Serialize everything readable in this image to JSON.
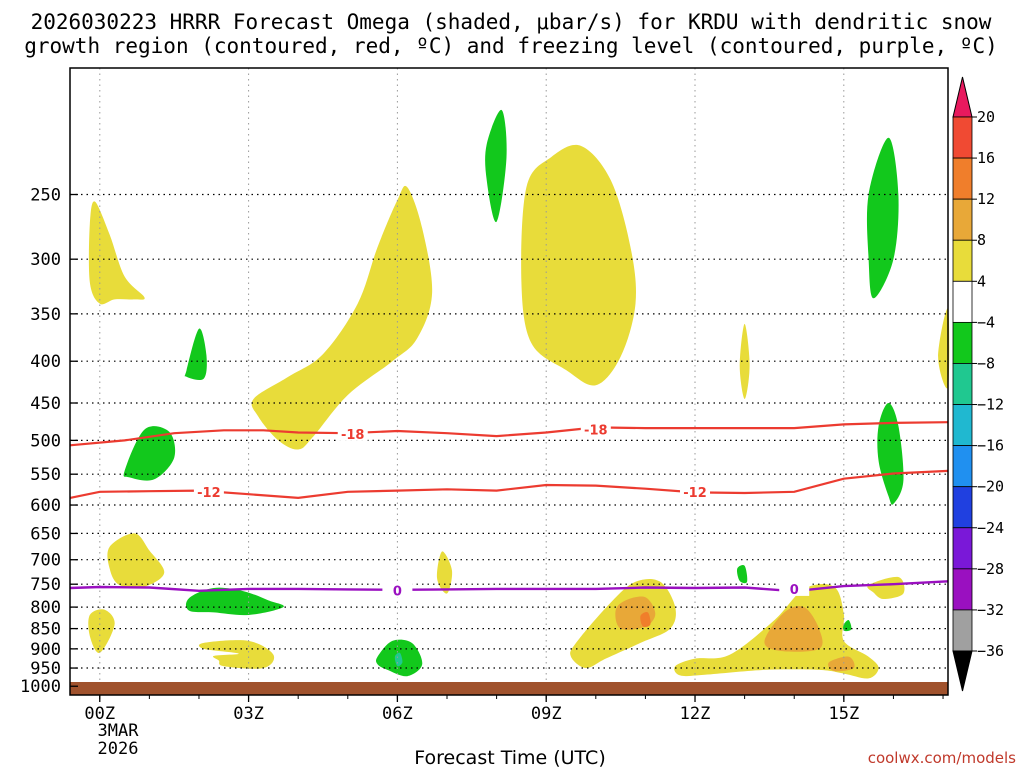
{
  "chart_data": {
    "type": "contour",
    "title_line1": "2026030223 HRRR Forecast Omega (shaded, μbar/s) for KRDU with dendritic snow",
    "title_line2": "growth region (contoured, red, ºC) and freezing level (contoured, purple, ºC)",
    "xlabel": "Forecast Time (UTC)",
    "x_ticks": [
      "00Z",
      "03Z",
      "06Z",
      "09Z",
      "12Z",
      "15Z"
    ],
    "x_tick_hours": [
      0,
      3,
      6,
      9,
      12,
      15
    ],
    "x_date_line1": "3MAR",
    "x_date_line2": "2026",
    "xlim_hours": [
      -0.6,
      17.1
    ],
    "y_ticks": [
      250,
      300,
      350,
      400,
      450,
      500,
      550,
      600,
      650,
      700,
      750,
      800,
      850,
      900,
      950,
      1000
    ],
    "ylim_hpa": [
      175,
      1025
    ],
    "y_scale": "log-pressure",
    "colorbar": {
      "levels": [
        20,
        16,
        12,
        8,
        4,
        -4,
        -8,
        -12,
        -16,
        -20,
        -24,
        -28,
        -32,
        -36
      ],
      "colors": [
        "#e8195e",
        "#f04a33",
        "#f07e2b",
        "#e8a838",
        "#e8dc3a",
        "#ffffff",
        "#12c81c",
        "#20c890",
        "#20b8d0",
        "#2090f0",
        "#2040e0",
        "#7a18d8",
        "#9a10c0",
        "#a0a0a0",
        "#000000"
      ]
    },
    "contours": {
      "dgz_red": [
        {
          "label": "-18",
          "hours": [
            -0.6,
            0.5,
            1.5,
            2.5,
            3.3,
            4.0,
            5.0,
            6.0,
            7.0,
            8.0,
            9.0,
            10.0,
            11.0,
            12.0,
            13.0,
            14.0,
            15.0,
            16.0,
            17.1
          ],
          "hpa": [
            507,
            500,
            490,
            486,
            486,
            489,
            490,
            487,
            490,
            494,
            489,
            482,
            483,
            483,
            483,
            483,
            478,
            476,
            475
          ]
        },
        {
          "label": "-12",
          "hours": [
            -0.6,
            0.0,
            1.0,
            2.0,
            3.0,
            4.0,
            5.0,
            6.0,
            7.0,
            8.0,
            9.0,
            10.0,
            11.0,
            12.0,
            13.0,
            14.0,
            15.0,
            16.0,
            17.1
          ],
          "hpa": [
            588,
            578,
            577,
            576,
            582,
            588,
            578,
            576,
            574,
            576,
            567,
            568,
            573,
            579,
            580,
            578,
            557,
            549,
            545
          ]
        }
      ],
      "freezing_purple": {
        "label": "0",
        "hours": [
          -0.6,
          0.0,
          1.0,
          2.0,
          3.0,
          4.0,
          5.0,
          6.0,
          7.0,
          8.0,
          9.0,
          10.0,
          11.0,
          12.0,
          13.0,
          14.0,
          15.0,
          16.0,
          17.1
        ],
        "hpa": [
          758,
          756,
          757,
          764,
          760,
          760,
          761,
          762,
          761,
          760,
          760,
          760,
          757,
          758,
          757,
          765,
          754,
          750,
          744
        ]
      }
    },
    "label_positions": {
      "dgz_red_labels": [
        {
          "text": "-18",
          "hour": 5.1,
          "hpa": 491
        },
        {
          "text": "-18",
          "hour": 10.0,
          "hpa": 485
        },
        {
          "text": "-12",
          "hour": 2.2,
          "hpa": 578
        },
        {
          "text": "-12",
          "hour": 12.0,
          "hpa": 578
        }
      ],
      "freezing_labels": [
        {
          "text": "0",
          "hour": 6.0,
          "hpa": 763
        },
        {
          "text": "0",
          "hour": 14.0,
          "hpa": 760
        }
      ]
    },
    "omega_regions": [
      {
        "class": "4-8",
        "polygon": [
          [
            -0.2,
            272
          ],
          [
            -0.1,
            255
          ],
          [
            0.2,
            280
          ],
          [
            0.5,
            315
          ],
          [
            0.9,
            334
          ],
          [
            0.7,
            336
          ],
          [
            0.3,
            336
          ],
          [
            0,
            340
          ],
          [
            -0.2,
            320
          ]
        ]
      },
      {
        "class": "4-8",
        "polygon": [
          [
            3.1,
            445
          ],
          [
            3.8,
            418
          ],
          [
            4.5,
            392
          ],
          [
            5.2,
            340
          ],
          [
            5.6,
            290
          ],
          [
            6.0,
            254
          ],
          [
            6.2,
            245
          ],
          [
            6.5,
            275
          ],
          [
            6.7,
            330
          ],
          [
            6.4,
            375
          ],
          [
            5.9,
            400
          ],
          [
            5.0,
            440
          ],
          [
            4.3,
            495
          ],
          [
            4.0,
            513
          ],
          [
            3.6,
            500
          ],
          [
            3.2,
            468
          ]
        ]
      },
      {
        "class": "4-8",
        "polygon": [
          [
            8.6,
            245
          ],
          [
            9.1,
            225
          ],
          [
            9.7,
            218
          ],
          [
            10.3,
            240
          ],
          [
            10.7,
            290
          ],
          [
            10.8,
            340
          ],
          [
            10.5,
            395
          ],
          [
            10.0,
            428
          ],
          [
            9.4,
            410
          ],
          [
            8.7,
            380
          ],
          [
            8.5,
            320
          ]
        ]
      },
      {
        "class": "4-8",
        "polygon": [
          [
            13.0,
            360
          ],
          [
            13.1,
            405
          ],
          [
            13.0,
            445
          ],
          [
            12.9,
            405
          ]
        ]
      },
      {
        "class": "4-8",
        "polygon": [
          [
            17.1,
            345
          ],
          [
            16.9,
            395
          ],
          [
            17.1,
            430
          ]
        ]
      },
      {
        "class": "4-8",
        "polygon": [
          [
            0.2,
            675
          ],
          [
            0.7,
            650
          ],
          [
            1.0,
            682
          ],
          [
            1.3,
            726
          ],
          [
            0.9,
            755
          ],
          [
            0.4,
            752
          ],
          [
            0.2,
            718
          ]
        ]
      },
      {
        "class": "4-8",
        "polygon": [
          [
            6.9,
            684
          ],
          [
            7.1,
            722
          ],
          [
            7.0,
            770
          ],
          [
            6.8,
            738
          ]
        ]
      },
      {
        "class": "4-8",
        "polygon": [
          [
            -0.2,
            818
          ],
          [
            0.1,
            806
          ],
          [
            0.3,
            840
          ],
          [
            0,
            910
          ],
          [
            -0.2,
            868
          ]
        ]
      },
      {
        "class": "4-8",
        "polygon": [
          [
            2.1,
            885
          ],
          [
            3.0,
            880
          ],
          [
            3.5,
            915
          ],
          [
            3.3,
            950
          ],
          [
            2.5,
            945
          ],
          [
            2.4,
            930
          ],
          [
            2.3,
            918
          ],
          [
            2.8,
            912
          ],
          [
            2.1,
            900
          ]
        ]
      },
      {
        "class": "4-8",
        "polygon": [
          [
            9.6,
            885
          ],
          [
            10.3,
            790
          ],
          [
            10.8,
            745
          ],
          [
            11.3,
            745
          ],
          [
            11.6,
            800
          ],
          [
            11.5,
            850
          ],
          [
            10.9,
            885
          ],
          [
            10.2,
            925
          ],
          [
            9.8,
            950
          ],
          [
            9.5,
            920
          ]
        ]
      },
      {
        "class": "4-8",
        "polygon": [
          [
            11.6,
            945
          ],
          [
            12.0,
            925
          ],
          [
            12.7,
            915
          ],
          [
            13.6,
            830
          ],
          [
            14.2,
            760
          ],
          [
            14.8,
            755
          ],
          [
            15.0,
            815
          ],
          [
            15.0,
            880
          ],
          [
            15.5,
            920
          ],
          [
            15.7,
            950
          ],
          [
            15.5,
            978
          ],
          [
            15.0,
            965
          ],
          [
            14.5,
            955
          ],
          [
            13.4,
            955
          ],
          [
            12.2,
            968
          ],
          [
            11.7,
            970
          ]
        ]
      },
      {
        "class": "4-8",
        "polygon": [
          [
            15.5,
            752
          ],
          [
            16.1,
            735
          ],
          [
            16.2,
            770
          ],
          [
            15.8,
            782
          ],
          [
            15.6,
            768
          ]
        ]
      },
      {
        "class": "8-12",
        "polygon": [
          [
            10.4,
            808
          ],
          [
            10.6,
            785
          ],
          [
            11.0,
            778
          ],
          [
            11.2,
            815
          ],
          [
            11.0,
            845
          ],
          [
            10.5,
            850
          ]
        ]
      },
      {
        "class": "8-12",
        "polygon": [
          [
            13.4,
            880
          ],
          [
            13.8,
            812
          ],
          [
            14.2,
            800
          ],
          [
            14.5,
            850
          ],
          [
            14.5,
            900
          ],
          [
            13.7,
            905
          ]
        ]
      },
      {
        "class": "8-12",
        "polygon": [
          [
            14.7,
            935
          ],
          [
            15.1,
            920
          ],
          [
            15.2,
            950
          ],
          [
            14.8,
            958
          ]
        ]
      },
      {
        "class": "12-16",
        "polygon": [
          [
            10.9,
            820
          ],
          [
            11.05,
            812
          ],
          [
            11.1,
            840
          ],
          [
            10.95,
            845
          ]
        ]
      },
      {
        "class": "-8..-4",
        "polygon": [
          [
            7.8,
            217
          ],
          [
            8.1,
            197
          ],
          [
            8.2,
            225
          ],
          [
            8.0,
            270
          ],
          [
            7.8,
            240
          ]
        ]
      },
      {
        "class": "-8..-4",
        "polygon": [
          [
            1.75,
            410
          ],
          [
            2.0,
            365
          ],
          [
            2.15,
            393
          ],
          [
            2.1,
            420
          ],
          [
            1.75,
            418
          ]
        ]
      },
      {
        "class": "-8..-4",
        "polygon": [
          [
            15.5,
            250
          ],
          [
            15.9,
            213
          ],
          [
            16.1,
            250
          ],
          [
            16.0,
            300
          ],
          [
            15.6,
            335
          ],
          [
            15.5,
            300
          ]
        ]
      },
      {
        "class": "-8..-4",
        "polygon": [
          [
            15.7,
            480
          ],
          [
            15.9,
            450
          ],
          [
            16.1,
            480
          ],
          [
            16.2,
            560
          ],
          [
            16.0,
            598
          ],
          [
            15.9,
            585
          ],
          [
            15.7,
            530
          ]
        ]
      },
      {
        "class": "-8..-4",
        "polygon": [
          [
            0.5,
            545
          ],
          [
            0.9,
            485
          ],
          [
            1.4,
            488
          ],
          [
            1.5,
            525
          ],
          [
            1.1,
            558
          ],
          [
            0.6,
            555
          ]
        ]
      },
      {
        "class": "-8..-4",
        "polygon": [
          [
            1.8,
            780
          ],
          [
            2.3,
            758
          ],
          [
            2.9,
            765
          ],
          [
            3.4,
            785
          ],
          [
            3.7,
            800
          ],
          [
            3.0,
            818
          ],
          [
            2.3,
            812
          ],
          [
            1.8,
            808
          ]
        ]
      },
      {
        "class": "-8..-4",
        "polygon": [
          [
            12.85,
            718
          ],
          [
            13.0,
            712
          ],
          [
            13.05,
            745
          ],
          [
            12.9,
            743
          ]
        ]
      },
      {
        "class": "-8..-4",
        "polygon": [
          [
            15.0,
            840
          ],
          [
            15.1,
            830
          ],
          [
            15.15,
            852
          ],
          [
            15.0,
            855
          ]
        ]
      },
      {
        "class": "-8..-4",
        "polygon": [
          [
            5.6,
            920
          ],
          [
            5.9,
            880
          ],
          [
            6.3,
            886
          ],
          [
            6.5,
            940
          ],
          [
            6.2,
            972
          ],
          [
            5.8,
            955
          ],
          [
            5.6,
            940
          ]
        ]
      },
      {
        "class": "-12..-8",
        "polygon": [
          [
            5.95,
            920
          ],
          [
            6.05,
            910
          ],
          [
            6.1,
            935
          ],
          [
            6.0,
            945
          ]
        ]
      }
    ]
  },
  "credit": "coolwx.com/models"
}
